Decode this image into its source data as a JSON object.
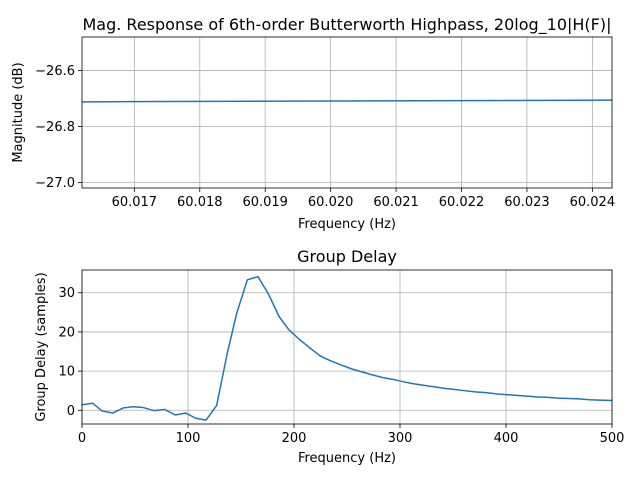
{
  "chart_data": [
    {
      "type": "line",
      "title": "Mag. Response of 6th-order Butterworth Highpass, 20log_10|H(F)|",
      "xlabel": "Frequency (Hz)",
      "ylabel": "Magnitude (dB)",
      "xlim": [
        60.0162,
        60.0243
      ],
      "ylim": [
        -27.02,
        -26.48
      ],
      "xticks": [
        60.017,
        60.018,
        60.019,
        60.02,
        60.021,
        60.022,
        60.023,
        60.024
      ],
      "xtick_labels": [
        "60.017",
        "60.018",
        "60.019",
        "60.020",
        "60.021",
        "60.022",
        "60.023",
        "60.024"
      ],
      "yticks": [
        -26.6,
        -26.8,
        -27.0
      ],
      "ytick_labels": [
        "−26.6",
        "−26.8",
        "−27.0"
      ],
      "grid": true,
      "series": [
        {
          "color": "#1f77b4",
          "x": [
            60.0162,
            60.0243
          ],
          "y": [
            -26.7118,
            -26.7058
          ]
        }
      ]
    },
    {
      "type": "line",
      "title": "Group Delay",
      "xlabel": "Frequency (Hz)",
      "ylabel": "Group Delay (samples)",
      "xlim": [
        0,
        500
      ],
      "ylim": [
        -3.5,
        35.8
      ],
      "xticks": [
        0,
        100,
        200,
        300,
        400,
        500
      ],
      "xtick_labels": [
        "0",
        "100",
        "200",
        "300",
        "400",
        "500"
      ],
      "yticks": [
        0,
        10,
        20,
        30
      ],
      "ytick_labels": [
        "0",
        "10",
        "20",
        "30"
      ],
      "grid": true,
      "series": [
        {
          "color": "#1f77b4",
          "x": [
            0,
            10,
            19,
            29,
            39,
            48,
            58,
            68,
            78,
            88,
            98,
            107,
            117,
            127,
            137,
            146,
            156,
            166,
            176,
            186,
            195,
            205,
            215,
            225,
            234,
            244,
            254,
            264,
            273,
            283,
            293,
            303,
            312,
            322,
            332,
            342,
            352,
            361,
            371,
            381,
            391,
            400,
            410,
            420,
            430,
            440,
            449,
            459,
            469,
            479,
            488,
            500
          ],
          "y": [
            1.4,
            1.8,
            -0.2,
            -0.7,
            0.6,
            0.9,
            0.7,
            -0.1,
            0.2,
            -1.2,
            -0.7,
            -2.0,
            -2.5,
            1.2,
            14.5,
            24.8,
            33.3,
            34.1,
            29.6,
            23.9,
            20.6,
            18.1,
            15.9,
            13.8,
            12.7,
            11.6,
            10.6,
            9.8,
            9.1,
            8.4,
            7.9,
            7.3,
            6.8,
            6.4,
            6.0,
            5.6,
            5.3,
            5.0,
            4.7,
            4.5,
            4.2,
            4.0,
            3.8,
            3.6,
            3.4,
            3.3,
            3.1,
            3.0,
            2.9,
            2.7,
            2.6,
            2.5
          ]
        }
      ]
    }
  ]
}
